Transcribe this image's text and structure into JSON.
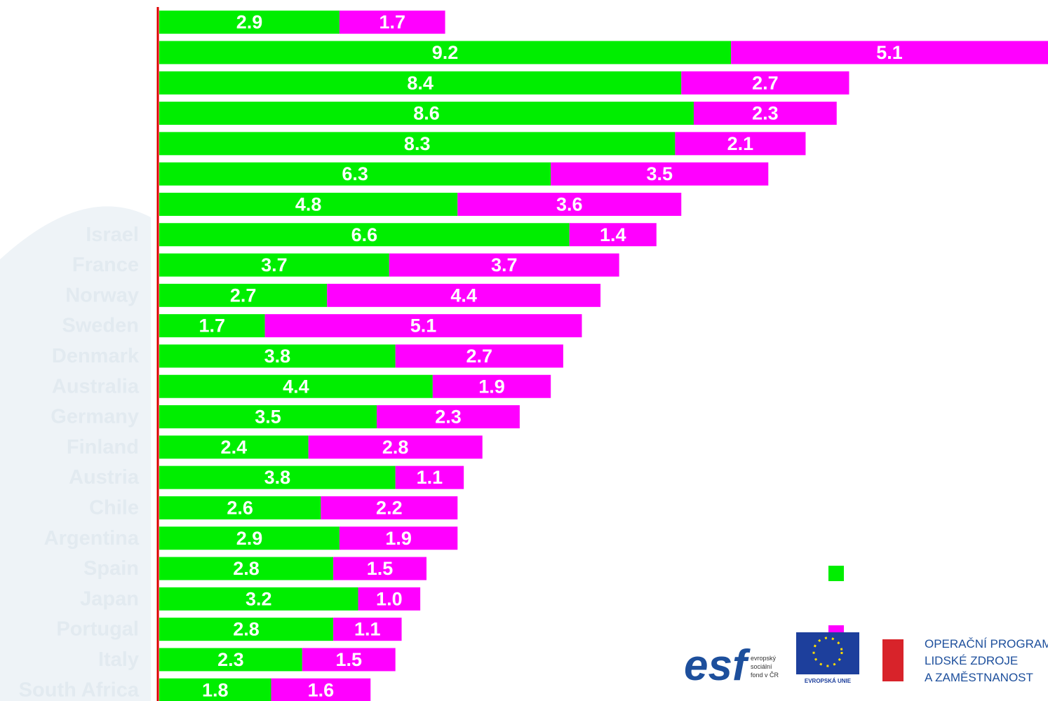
{
  "chart_data": {
    "type": "stacked-barh",
    "categories": [
      null,
      null,
      null,
      null,
      null,
      null,
      null,
      "Israel",
      "France",
      "Norway",
      "Sweden",
      "Denmark",
      "Australia",
      "Germany",
      "Finland",
      "Austria",
      "Chile",
      "Argentina",
      "Spain",
      "Japan",
      "Portugal",
      "Italy",
      "South Africa"
    ],
    "series": [
      {
        "color": "#00ee00",
        "values": [
          2.9,
          9.2,
          8.4,
          8.6,
          8.3,
          6.3,
          4.8,
          6.6,
          3.7,
          2.7,
          1.7,
          3.8,
          4.4,
          3.5,
          2.4,
          3.8,
          2.6,
          2.9,
          2.8,
          3.2,
          2.8,
          2.3,
          1.8
        ]
      },
      {
        "color": "#ff00ff",
        "values": [
          1.7,
          5.1,
          2.7,
          2.3,
          2.1,
          3.5,
          3.6,
          1.4,
          3.7,
          4.4,
          5.1,
          2.7,
          1.9,
          2.3,
          2.8,
          1.1,
          2.2,
          1.9,
          1.5,
          1,
          1.1,
          1.5,
          1.6
        ],
        "value_labels": [
          "1.7",
          "5.1",
          "2.7",
          "2.3",
          "2.1",
          "3.5",
          "3.6",
          "1.4",
          "3.7",
          "4.4",
          "5.1",
          "2.7",
          "1.9",
          "2.3",
          "2.8",
          "1.1",
          "2.2",
          "1.9",
          "1.5",
          "1.0",
          "1.1",
          "1.5",
          "1.6"
        ]
      }
    ],
    "xlim": [
      0,
      14.3
    ],
    "axis_color": "#dd0000"
  },
  "logos": {
    "esf": "esf",
    "esf_text": [
      "evropský",
      "sociální",
      "fond v ČR"
    ],
    "eu": "EVROPSKÁ UNIE",
    "op": [
      "OPERAČNÍ PROGRAM",
      "LIDSKÉ ZDROJE",
      "A ZAMĚSTNANOST"
    ]
  }
}
